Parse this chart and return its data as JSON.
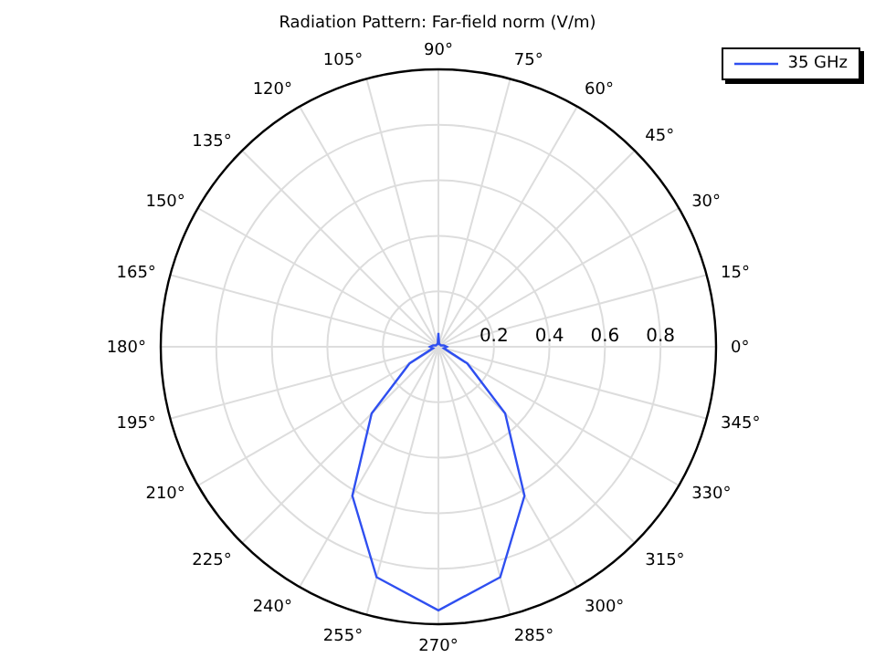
{
  "chart_data": {
    "type": "radar",
    "title": "Radiation Pattern: Far-field norm (V/m)",
    "categories": [
      "90°",
      "75°",
      "60°",
      "45°",
      "30°",
      "15°",
      "0°",
      "345°",
      "330°",
      "315°",
      "300°",
      "285°",
      "270°",
      "255°",
      "240°",
      "225°",
      "210°",
      "195°",
      "180°",
      "165°",
      "150°",
      "135°",
      "120°",
      "105°"
    ],
    "series": [
      {
        "name": "35 GHz",
        "color": "#2f4ff0",
        "values": [
          0.05,
          0.01,
          0.01,
          0.01,
          0.01,
          0.02,
          0.03,
          0.02,
          0.12,
          0.34,
          0.62,
          0.86,
          0.95,
          0.86,
          0.62,
          0.34,
          0.12,
          0.02,
          0.03,
          0.02,
          0.01,
          0.01,
          0.01,
          0.01
        ]
      }
    ],
    "ylim": [
      0,
      1
    ],
    "yticks": [
      0.2,
      0.4,
      0.6,
      0.8
    ],
    "grid": true,
    "legend": "top right",
    "marker": "none"
  }
}
